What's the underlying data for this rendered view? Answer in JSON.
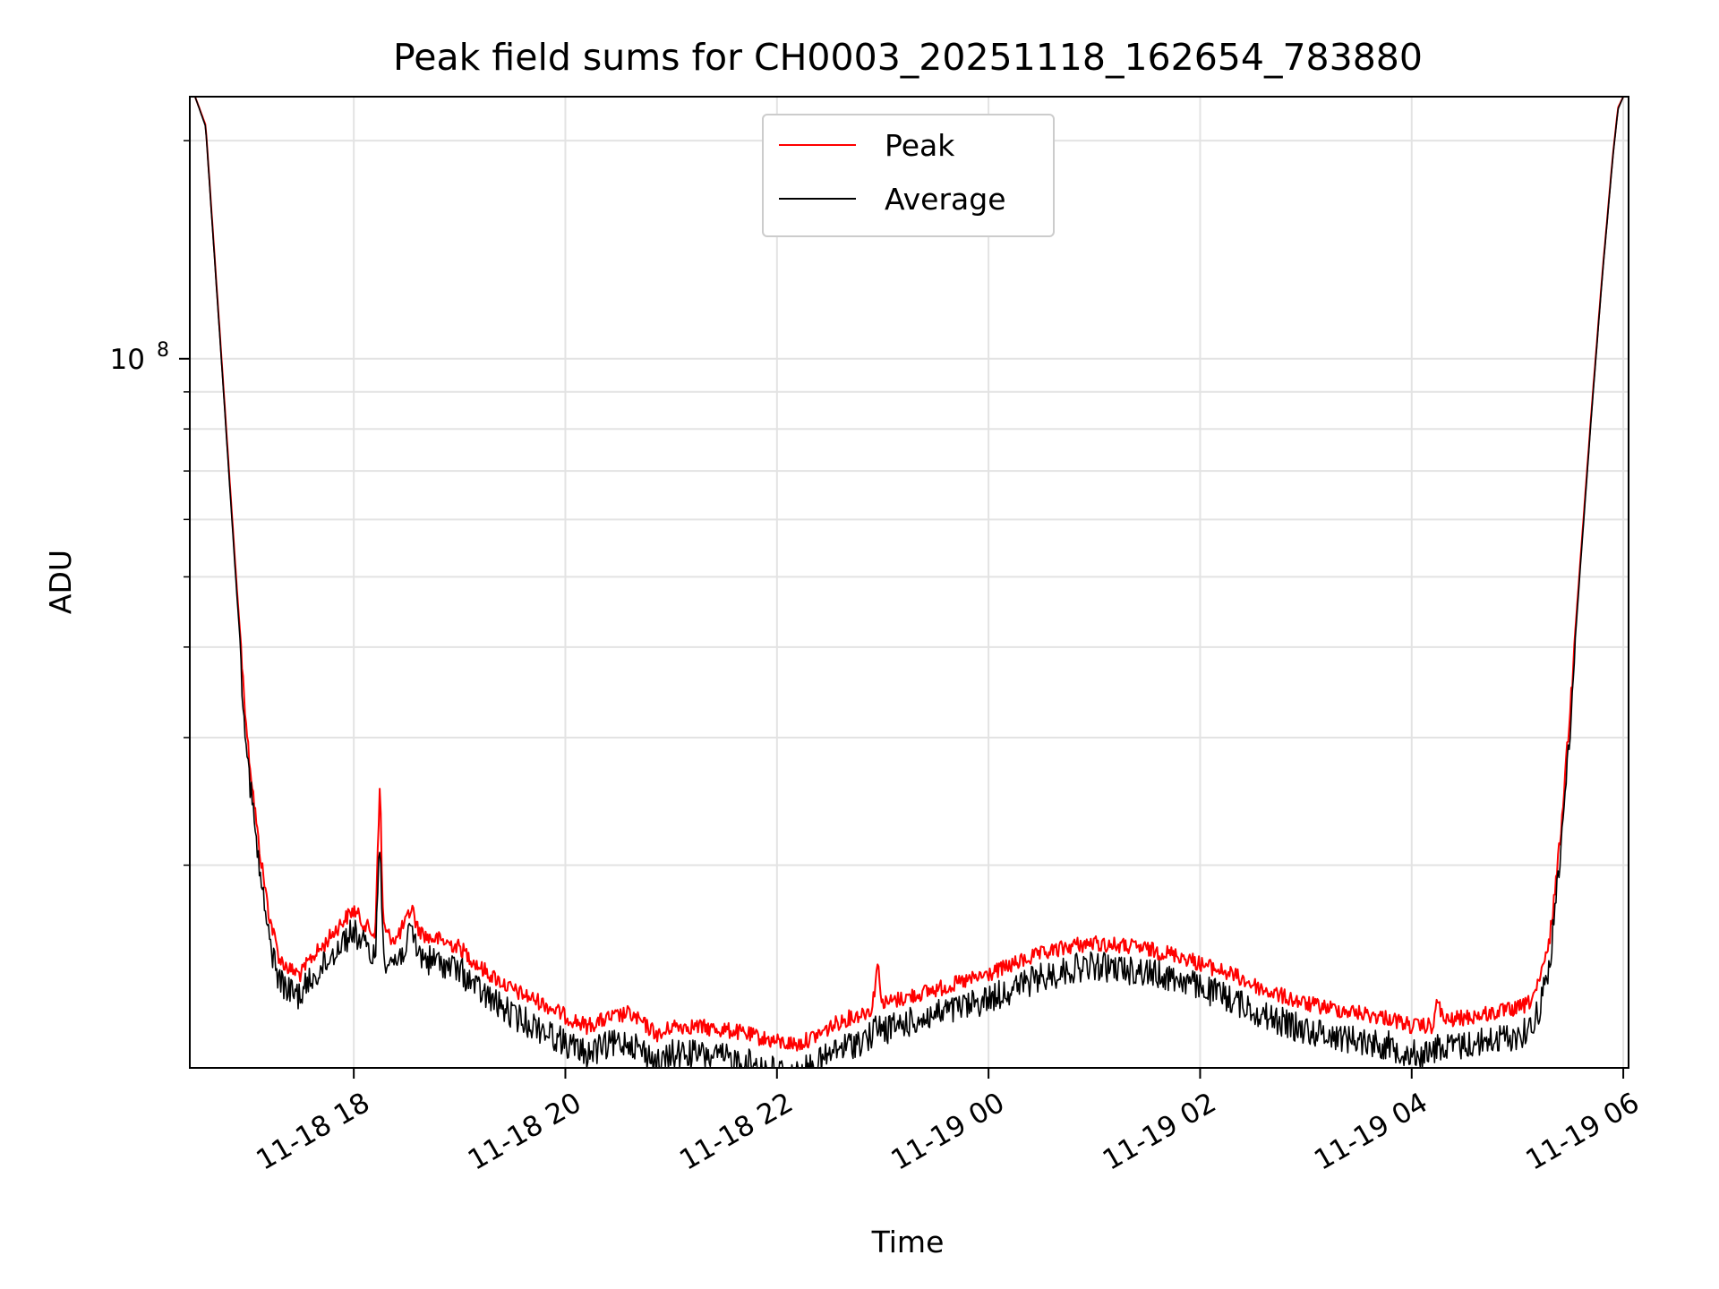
{
  "chart_data": {
    "type": "line",
    "title": "Peak field sums for CH0003_20251118_162654_783880",
    "xlabel": "Time",
    "ylabel": "ADU",
    "yscale": "log",
    "ylim": [
      10500000,
      230000000
    ],
    "xlim_hours": [
      16.45,
      30.05
    ],
    "grid": true,
    "legend_position": "top-center",
    "x_ticks": [
      {
        "hour": 18,
        "label": "11-18 18"
      },
      {
        "hour": 20,
        "label": "11-18 20"
      },
      {
        "hour": 22,
        "label": "11-18 22"
      },
      {
        "hour": 24,
        "label": "11-19 00"
      },
      {
        "hour": 26,
        "label": "11-19 02"
      },
      {
        "hour": 28,
        "label": "11-19 04"
      },
      {
        "hour": 30,
        "label": "11-19 06"
      }
    ],
    "y_major_ticks": [
      {
        "value": 100000000,
        "base": "10",
        "exp": "8"
      }
    ],
    "y_minor_values": [
      20000000,
      30000000,
      40000000,
      50000000,
      60000000,
      70000000,
      80000000,
      90000000,
      200000000
    ],
    "series": [
      {
        "name": "Peak",
        "color": "#ff0000",
        "x_hours": [
          16.5,
          16.6,
          16.75,
          16.9,
          17.0,
          17.1,
          17.2,
          17.3,
          17.4,
          17.5,
          17.6,
          17.7,
          17.8,
          17.9,
          18.0,
          18.1,
          18.2,
          18.25,
          18.27,
          18.3,
          18.4,
          18.5,
          18.55,
          18.6,
          18.7,
          18.8,
          18.9,
          19.0,
          19.2,
          19.5,
          19.8,
          20.0,
          20.2,
          20.4,
          20.6,
          20.8,
          20.9,
          21.0,
          21.2,
          21.4,
          21.6,
          21.8,
          22.0,
          22.2,
          22.4,
          22.6,
          22.8,
          22.9,
          22.95,
          23.0,
          23.4,
          23.8,
          24.0,
          24.4,
          24.8,
          25.0,
          25.4,
          25.8,
          26.0,
          26.3,
          26.6,
          27.0,
          27.4,
          27.8,
          28.0,
          28.2,
          28.25,
          28.3,
          28.6,
          29.0,
          29.1,
          29.2,
          29.3,
          29.4,
          29.5,
          29.6,
          29.7,
          29.8,
          29.9,
          29.95,
          30.0
        ],
        "values": [
          230000000,
          210000000,
          100000000,
          47000000,
          30000000,
          22000000,
          17500000,
          15200000,
          14700000,
          14500000,
          15300000,
          15800000,
          16500000,
          17200000,
          17800000,
          17000000,
          16400000,
          27000000,
          18000000,
          16500000,
          16200000,
          17200000,
          18000000,
          16800000,
          16300000,
          16200000,
          16000000,
          15800000,
          14800000,
          13800000,
          13200000,
          12700000,
          12300000,
          12600000,
          12800000,
          12200000,
          11900000,
          12300000,
          12300000,
          12200000,
          12100000,
          11900000,
          11700000,
          11600000,
          12000000,
          12500000,
          12800000,
          13000000,
          15000000,
          13200000,
          13700000,
          14200000,
          14500000,
          15300000,
          15900000,
          16000000,
          15800000,
          15400000,
          15000000,
          14500000,
          13800000,
          13200000,
          12900000,
          12600000,
          12300000,
          12300000,
          13400000,
          12500000,
          12700000,
          13000000,
          13200000,
          14000000,
          16000000,
          22000000,
          34000000,
          54000000,
          85000000,
          130000000,
          190000000,
          222000000,
          230000000
        ]
      },
      {
        "name": "Average",
        "color": "#000000",
        "x_hours": [
          16.5,
          16.6,
          16.75,
          16.9,
          17.0,
          17.1,
          17.2,
          17.3,
          17.4,
          17.5,
          17.6,
          17.7,
          17.8,
          17.9,
          18.0,
          18.1,
          18.2,
          18.25,
          18.27,
          18.3,
          18.4,
          18.5,
          18.55,
          18.6,
          18.7,
          18.8,
          18.9,
          19.0,
          19.2,
          19.5,
          19.8,
          20.0,
          20.2,
          20.4,
          20.6,
          20.8,
          20.9,
          21.0,
          21.2,
          21.4,
          21.6,
          21.8,
          22.0,
          22.2,
          22.4,
          22.6,
          22.8,
          22.9,
          22.95,
          23.0,
          23.4,
          23.8,
          24.0,
          24.4,
          24.8,
          25.0,
          25.4,
          25.8,
          26.0,
          26.3,
          26.6,
          27.0,
          27.4,
          27.8,
          28.0,
          28.2,
          28.25,
          28.3,
          28.6,
          29.0,
          29.1,
          29.2,
          29.3,
          29.4,
          29.5,
          29.6,
          29.7,
          29.8,
          29.9,
          29.95,
          30.0
        ],
        "values": [
          230000000,
          209000000,
          99000000,
          46000000,
          29000000,
          21000000,
          16500000,
          14500000,
          14000000,
          13900000,
          14600000,
          15100000,
          15800000,
          16500000,
          17000000,
          16200000,
          15600000,
          23000000,
          17000000,
          15600000,
          15400000,
          16300000,
          17000000,
          15900000,
          15500000,
          15400000,
          15200000,
          15000000,
          14000000,
          13000000,
          12400000,
          11900000,
          11500000,
          11800000,
          12000000,
          11400000,
          11100000,
          11500000,
          11500000,
          11400000,
          11300000,
          11100000,
          10900000,
          10800000,
          11200000,
          11700000,
          12000000,
          12200000,
          12600000,
          12400000,
          12900000,
          13400000,
          13700000,
          14500000,
          15100000,
          15200000,
          15000000,
          14600000,
          14200000,
          13700000,
          13000000,
          12400000,
          12100000,
          11800000,
          11500000,
          11500000,
          11900000,
          11700000,
          11900000,
          12200000,
          12400000,
          13200000,
          15200000,
          21000000,
          33000000,
          53000000,
          84000000,
          129000000,
          189000000,
          221000000,
          230000000
        ]
      }
    ]
  }
}
